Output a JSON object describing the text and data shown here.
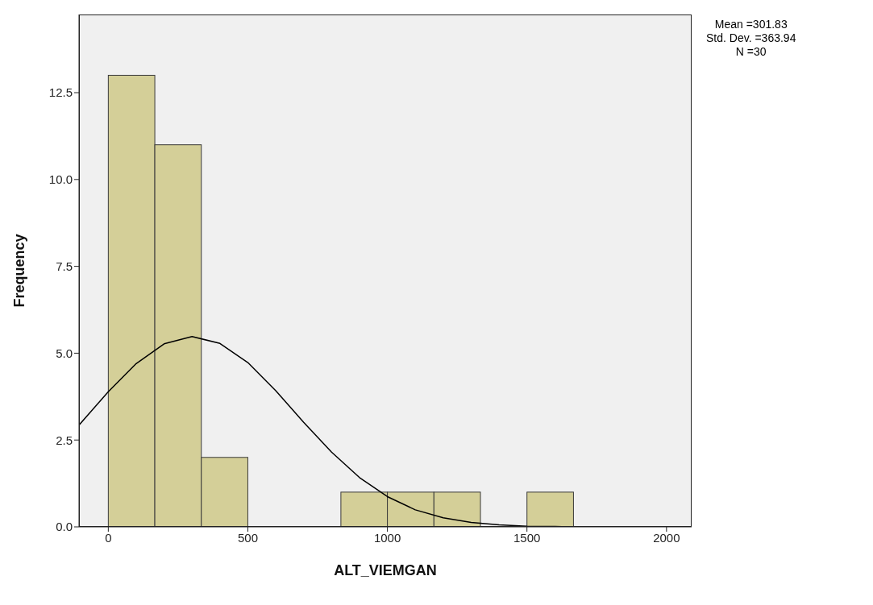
{
  "chart_data": {
    "type": "histogram",
    "xlabel": "ALT_VIEMGAN",
    "ylabel": "Frequency",
    "bins": [
      0,
      166.67,
      333.33,
      500,
      666.67,
      833.33,
      1000,
      1166.67,
      1333.33,
      1500,
      1666.67
    ],
    "values": [
      13,
      11,
      2,
      0,
      0,
      1,
      1,
      1,
      0,
      1
    ],
    "color": "#d4cf98",
    "series": [
      {
        "type": "line",
        "color": "#000000",
        "x": [
          -105,
          0,
          100,
          200,
          300,
          400,
          500,
          600,
          700,
          800,
          900,
          1000,
          1100,
          1200,
          1300,
          1400,
          1500,
          1600,
          1650
        ],
        "values": [
          2.93,
          3.89,
          4.7,
          5.27,
          5.48,
          5.28,
          4.73,
          3.92,
          3.01,
          2.15,
          1.42,
          0.87,
          0.49,
          0.26,
          0.13,
          0.06,
          0.02,
          0.01,
          0
        ]
      }
    ],
    "marker": "none",
    "line_style": "solid",
    "xlim": [
      -105,
      2090
    ],
    "xticks": [
      0,
      500,
      1000,
      1500,
      2000
    ],
    "ylim": [
      0,
      14.75
    ],
    "yticks": [
      {
        "value": 0,
        "label": "0.0"
      },
      {
        "value": 2.5,
        "label": "2.5"
      },
      {
        "value": 5,
        "label": "5.0"
      },
      {
        "value": 7.5,
        "label": "7.5"
      },
      {
        "value": 10,
        "label": "10.0"
      },
      {
        "value": 12.5,
        "label": "12.5"
      }
    ],
    "grid": false,
    "legend": false,
    "annotations": [
      "Mean =301.83",
      "Std. Dev. =363.94",
      "N =30"
    ]
  }
}
